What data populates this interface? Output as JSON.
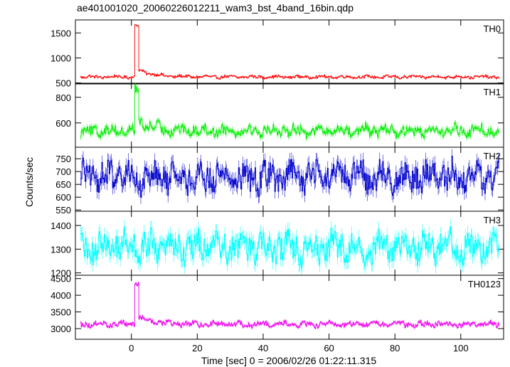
{
  "chart_data": {
    "type": "line",
    "title": "ae401001020_20060226012211_wam3_bst_4band_16bin.qdp",
    "xlabel": "Time [sec] 0 = 2006/02/26 01:22:11.315",
    "ylabel": "Counts/sec",
    "xlim": [
      -17,
      113
    ],
    "x_ticks": [
      0,
      20,
      40,
      60,
      80,
      100
    ],
    "x_tick_labels": [
      "0",
      "20",
      "40",
      "60",
      "80",
      "100"
    ],
    "x_bin_sec": 0.25,
    "x_range_data": [
      -15.5,
      111.5
    ],
    "burst": {
      "start": 0.8,
      "peak_end": 2.2,
      "decay_tau": 4.5
    },
    "panels": [
      {
        "name": "TH0",
        "color": "#ff0000",
        "ylim": [
          480,
          1760
        ],
        "y_ticks": [
          500,
          1000,
          1500
        ],
        "y_tick_labels": [
          "500",
          "1000",
          "1500"
        ],
        "baseline": 620,
        "peak": 1650,
        "tail": 140,
        "noise": 25
      },
      {
        "name": "TH1",
        "color": "#00ee00",
        "ylim": [
          410,
          910
        ],
        "y_ticks": [
          600,
          800
        ],
        "y_tick_labels": [
          "600",
          "800"
        ],
        "baseline": 540,
        "peak": 880,
        "tail": 70,
        "noise": 35
      },
      {
        "name": "TH2",
        "color": "#0000cc",
        "ylim": [
          545,
          795
        ],
        "y_ticks": [
          550,
          600,
          650,
          700,
          750
        ],
        "y_tick_labels": [
          "550",
          "600",
          "650",
          "700",
          "750"
        ],
        "baseline": 680,
        "peak": 680,
        "tail": 0,
        "noise": 45
      },
      {
        "name": "TH3",
        "color": "#00ffff",
        "ylim": [
          1190,
          1460
        ],
        "y_ticks": [
          1200,
          1300,
          1400
        ],
        "y_tick_labels": [
          "1200",
          "1300",
          "1400"
        ],
        "baseline": 1310,
        "peak": 1310,
        "tail": 0,
        "noise": 50
      },
      {
        "name": "TH0123",
        "color": "#ee00ee",
        "ylim": [
          2680,
          4600
        ],
        "y_ticks": [
          3000,
          3500,
          4000,
          4500
        ],
        "y_tick_labels": [
          "3000",
          "3500",
          "4000",
          "4500"
        ],
        "baseline": 3130,
        "peak": 4350,
        "tail": 220,
        "noise": 70
      }
    ]
  }
}
